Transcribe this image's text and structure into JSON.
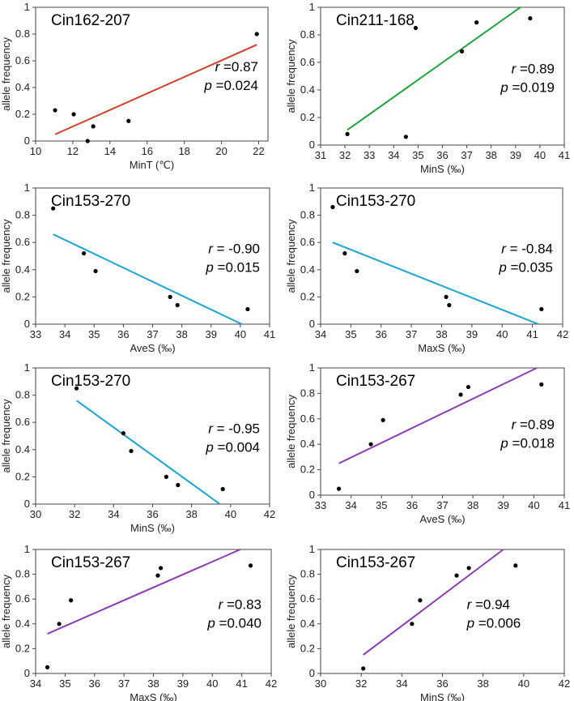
{
  "colors": {
    "red": "#d0402a",
    "green": "#1fa23a",
    "blue": "#1aa3d3",
    "purple": "#8c3bb3"
  },
  "chart_data": [
    {
      "type": "scatter",
      "title": "Cin162-207",
      "xlabel": "MinT (℃)",
      "ylabel": "allele frequency",
      "xlim": [
        10,
        22.5
      ],
      "ylim": [
        0,
        1
      ],
      "xticks": [
        10,
        12,
        14,
        16,
        18,
        20,
        22
      ],
      "xtick_labels": [
        "10",
        "12",
        "14",
        "16",
        "18",
        "20",
        "22"
      ],
      "yticks": [
        0,
        0.2,
        0.4,
        0.6,
        0.8,
        1
      ],
      "ytick_labels": [
        "0",
        "0.2",
        "0.4",
        "0.6",
        "0.8",
        "1"
      ],
      "points": [
        [
          11.05,
          0.23
        ],
        [
          12.05,
          0.2
        ],
        [
          12.8,
          0.0
        ],
        [
          13.1,
          0.11
        ],
        [
          15.0,
          0.15
        ],
        [
          21.9,
          0.8
        ]
      ],
      "fit_line": [
        [
          11.05,
          0.05
        ],
        [
          21.9,
          0.72
        ]
      ],
      "line_color": "#d0402a",
      "r_label": "r",
      "r_value": "=0.87",
      "p_label": "p",
      "p_value": "=0.024",
      "stat_anchor": "right"
    },
    {
      "type": "scatter",
      "title": "Cin211-168",
      "xlabel": "MinS (‰)",
      "ylabel": "allele frequency",
      "xlim": [
        31,
        41
      ],
      "ylim": [
        0,
        1
      ],
      "xticks": [
        31,
        32,
        33,
        34,
        35,
        36,
        37,
        38,
        39,
        40,
        41
      ],
      "xtick_labels": [
        "31",
        "32",
        "33",
        "34",
        "35",
        "36",
        "37",
        "38",
        "39",
        "40",
        "41"
      ],
      "yticks": [
        0,
        0.2,
        0.4,
        0.6,
        0.8,
        1
      ],
      "ytick_labels": [
        "0",
        "0.2",
        "0.4",
        "0.6",
        "0.8",
        "1"
      ],
      "points": [
        [
          32.1,
          0.08
        ],
        [
          34.5,
          0.06
        ],
        [
          34.9,
          0.85
        ],
        [
          36.8,
          0.68
        ],
        [
          37.4,
          0.89
        ],
        [
          39.6,
          0.92
        ]
      ],
      "fit_line": [
        [
          32.1,
          0.11
        ],
        [
          39.2,
          1.0
        ]
      ],
      "line_color": "#1fa23a",
      "r_label": "r",
      "r_value": "=0.89",
      "p_label": "p",
      "p_value": "=0.019",
      "stat_anchor": "right"
    },
    {
      "type": "scatter",
      "title": "Cin153-270",
      "xlabel": "AveS (‰)",
      "ylabel": "allele frequency",
      "xlim": [
        33,
        41
      ],
      "ylim": [
        0,
        1
      ],
      "xticks": [
        33,
        34,
        35,
        36,
        37,
        38,
        39,
        40,
        41
      ],
      "xtick_labels": [
        "33",
        "34",
        "35",
        "36",
        "37",
        "38",
        "39",
        "40",
        "41"
      ],
      "yticks": [
        0,
        0.2,
        0.4,
        0.6,
        0.8,
        1
      ],
      "ytick_labels": [
        "0",
        "0.2",
        "0.4",
        "0.6",
        "0.8",
        "1"
      ],
      "points": [
        [
          33.6,
          0.85
        ],
        [
          34.65,
          0.52
        ],
        [
          35.05,
          0.39
        ],
        [
          37.6,
          0.2
        ],
        [
          37.85,
          0.14
        ],
        [
          40.25,
          0.11
        ]
      ],
      "fit_line": [
        [
          33.6,
          0.66
        ],
        [
          40.05,
          0.0
        ]
      ],
      "line_color": "#1aa3d3",
      "r_label": "r",
      "r_value": "= -0.90",
      "p_label": "p",
      "p_value": "=0.015",
      "stat_anchor": "right"
    },
    {
      "type": "scatter",
      "title": "Cin153-270",
      "xlabel": "MaxS (‰)",
      "ylabel": "allele frequency",
      "xlim": [
        34,
        42
      ],
      "ylim": [
        0,
        1
      ],
      "xticks": [
        34,
        35,
        36,
        37,
        38,
        39,
        40,
        41,
        42
      ],
      "xtick_labels": [
        "34",
        "35",
        "36",
        "37",
        "38",
        "39",
        "40",
        "41",
        "42"
      ],
      "yticks": [
        0,
        0.2,
        0.4,
        0.6,
        0.8,
        1
      ],
      "ytick_labels": [
        "0",
        "0.2",
        "0.4",
        "0.6",
        "0.8",
        "1"
      ],
      "points": [
        [
          34.4,
          0.86
        ],
        [
          34.8,
          0.52
        ],
        [
          35.2,
          0.39
        ],
        [
          38.15,
          0.2
        ],
        [
          38.25,
          0.14
        ],
        [
          41.3,
          0.11
        ]
      ],
      "fit_line": [
        [
          34.4,
          0.6
        ],
        [
          41.2,
          0.0
        ]
      ],
      "line_color": "#1aa3d3",
      "r_label": "r",
      "r_value": "= -0.84",
      "p_label": "p",
      "p_value": "=0.035",
      "stat_anchor": "right"
    },
    {
      "type": "scatter",
      "title": "Cin153-270",
      "xlabel": "MinS (‰)",
      "ylabel": "allele frequency",
      "xlim": [
        30,
        42
      ],
      "ylim": [
        0,
        1
      ],
      "xticks": [
        30,
        32,
        34,
        36,
        38,
        40,
        42
      ],
      "xtick_labels": [
        "30",
        "32",
        "34",
        "36",
        "38",
        "40",
        "42"
      ],
      "yticks": [
        0,
        0.2,
        0.4,
        0.6,
        0.8,
        1
      ],
      "ytick_labels": [
        "0",
        "0.2",
        "0.4",
        "0.6",
        "0.8",
        "1"
      ],
      "points": [
        [
          32.1,
          0.85
        ],
        [
          34.5,
          0.52
        ],
        [
          34.9,
          0.39
        ],
        [
          36.7,
          0.2
        ],
        [
          37.3,
          0.14
        ],
        [
          39.6,
          0.11
        ]
      ],
      "fit_line": [
        [
          32.1,
          0.76
        ],
        [
          39.45,
          0.0
        ]
      ],
      "line_color": "#1aa3d3",
      "r_label": "r",
      "r_value": "= -0.95",
      "p_label": "p",
      "p_value": "=0.004",
      "stat_anchor": "right"
    },
    {
      "type": "scatter",
      "title": "Cin153-267",
      "xlabel": "AveS (‰)",
      "ylabel": "allele frequency",
      "xlim": [
        33,
        41
      ],
      "ylim": [
        0,
        1
      ],
      "xticks": [
        33,
        34,
        35,
        36,
        37,
        38,
        39,
        40,
        41
      ],
      "xtick_labels": [
        "33",
        "34",
        "35",
        "36",
        "37",
        "38",
        "39",
        "40",
        "41"
      ],
      "yticks": [
        0,
        0.2,
        0.4,
        0.6,
        0.8,
        1
      ],
      "ytick_labels": [
        "0",
        "0.2",
        "0.4",
        "0.6",
        "0.8",
        "1"
      ],
      "points": [
        [
          33.6,
          0.05
        ],
        [
          34.65,
          0.4
        ],
        [
          35.05,
          0.59
        ],
        [
          37.6,
          0.79
        ],
        [
          37.85,
          0.85
        ],
        [
          40.25,
          0.87
        ]
      ],
      "fit_line": [
        [
          33.6,
          0.25
        ],
        [
          40.1,
          1.0
        ]
      ],
      "line_color": "#8c3bb3",
      "r_label": "r",
      "r_value": "=0.89",
      "p_label": "p",
      "p_value": "=0.018",
      "stat_anchor": "right"
    },
    {
      "type": "scatter",
      "title": "Cin153-267",
      "xlabel": "MaxS (‰)",
      "ylabel": "allele frequency",
      "xlim": [
        34,
        42
      ],
      "ylim": [
        0,
        1
      ],
      "xticks": [
        34,
        35,
        36,
        37,
        38,
        39,
        40,
        41,
        42
      ],
      "xtick_labels": [
        "34",
        "35",
        "36",
        "37",
        "38",
        "39",
        "40",
        "41",
        "42"
      ],
      "yticks": [
        0,
        0.2,
        0.4,
        0.6,
        0.8,
        1
      ],
      "ytick_labels": [
        "0",
        "0.2",
        "0.4",
        "0.6",
        "0.8",
        "1"
      ],
      "points": [
        [
          34.4,
          0.05
        ],
        [
          34.8,
          0.4
        ],
        [
          35.2,
          0.59
        ],
        [
          38.15,
          0.79
        ],
        [
          38.25,
          0.85
        ],
        [
          41.3,
          0.87
        ]
      ],
      "fit_line": [
        [
          34.4,
          0.32
        ],
        [
          40.95,
          1.0
        ]
      ],
      "line_color": "#8c3bb3",
      "r_label": "r",
      "r_value": "=0.83",
      "p_label": "p",
      "p_value": "=0.040",
      "stat_anchor": "right"
    },
    {
      "type": "scatter",
      "title": "Cin153-267",
      "xlabel": "MinS (‰)",
      "ylabel": "allele frequency",
      "xlim": [
        30,
        42
      ],
      "ylim": [
        0,
        1
      ],
      "xticks": [
        30,
        32,
        34,
        36,
        38,
        40,
        42
      ],
      "xtick_labels": [
        "30",
        "32",
        "34",
        "36",
        "38",
        "40",
        "42"
      ],
      "yticks": [
        0,
        0.2,
        0.4,
        0.6,
        0.8,
        1
      ],
      "ytick_labels": [
        "0",
        "0.2",
        "0.4",
        "0.6",
        "0.8",
        "1"
      ],
      "points": [
        [
          32.1,
          0.04
        ],
        [
          34.5,
          0.4
        ],
        [
          34.9,
          0.59
        ],
        [
          36.7,
          0.79
        ],
        [
          37.3,
          0.85
        ],
        [
          39.6,
          0.87
        ]
      ],
      "fit_line": [
        [
          32.1,
          0.15
        ],
        [
          39.0,
          1.0
        ]
      ],
      "line_color": "#8c3bb3",
      "r_label": "r",
      "r_value": "=0.94",
      "p_label": "p",
      "p_value": "=0.006",
      "stat_anchor": "left"
    }
  ]
}
